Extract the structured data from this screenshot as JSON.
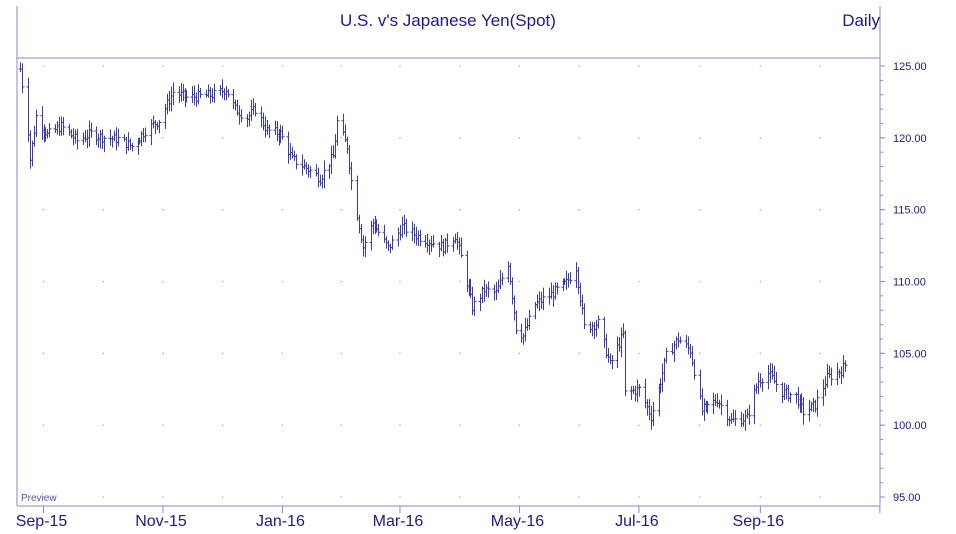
{
  "header": {
    "title": "U.S. v's Japanese Yen(Spot)",
    "frequency": "Daily"
  },
  "watermark": "Preview",
  "colors": {
    "ink": "#1a1a8c",
    "bars": "#3b3bb0",
    "grid_dots": "#b0b0b0",
    "background": "#ffffff"
  },
  "chart_data": {
    "type": "ohlc",
    "title": "U.S. v's Japanese Yen(Spot)",
    "ylim": [
      95,
      125
    ],
    "y_axis_side": "right",
    "y_tick_values": [
      95,
      100,
      105,
      110,
      115,
      120,
      125
    ],
    "y_tick_labels": [
      "95.00",
      "100.00",
      "105.00",
      "110.00",
      "115.00",
      "120.00",
      "125.00"
    ],
    "x_tick_labels": [
      "Sep-15",
      "Nov-15",
      "Jan-16",
      "Mar-16",
      "May-16",
      "Jul-16",
      "Sep-16"
    ],
    "x_tick_dates": [
      "2015-09-01",
      "2015-11-01",
      "2016-01-01",
      "2016-03-01",
      "2016-05-01",
      "2016-07-01",
      "2016-09-01"
    ],
    "x_range": [
      "2015-08-20",
      "2016-10-28"
    ],
    "grid": "dotted",
    "anchors": [
      [
        "2015-08-20",
        124.8
      ],
      [
        "2015-08-24",
        120.5
      ],
      [
        "2015-08-25",
        118.5
      ],
      [
        "2015-08-28",
        121.5
      ],
      [
        "2015-09-03",
        120.2
      ],
      [
        "2015-09-10",
        120.8
      ],
      [
        "2015-09-18",
        119.8
      ],
      [
        "2015-09-25",
        120.3
      ],
      [
        "2015-10-02",
        120.0
      ],
      [
        "2015-10-09",
        119.9
      ],
      [
        "2015-10-16",
        119.4
      ],
      [
        "2015-10-23",
        120.5
      ],
      [
        "2015-10-30",
        121.2
      ],
      [
        "2015-11-06",
        123.2
      ],
      [
        "2015-11-13",
        122.8
      ],
      [
        "2015-11-20",
        122.9
      ],
      [
        "2015-11-27",
        123.0
      ],
      [
        "2015-12-03",
        123.4
      ],
      [
        "2015-12-08",
        122.0
      ],
      [
        "2015-12-14",
        121.4
      ],
      [
        "2015-12-18",
        122.0
      ],
      [
        "2015-12-24",
        120.5
      ],
      [
        "2015-12-31",
        120.3
      ],
      [
        "2016-01-06",
        118.5
      ],
      [
        "2016-01-13",
        117.9
      ],
      [
        "2016-01-20",
        117.2
      ],
      [
        "2016-01-27",
        118.7
      ],
      [
        "2016-01-29",
        121.1
      ],
      [
        "2016-02-03",
        119.4
      ],
      [
        "2016-02-05",
        117.0
      ],
      [
        "2016-02-11",
        112.4
      ],
      [
        "2016-02-16",
        114.1
      ],
      [
        "2016-02-24",
        112.3
      ],
      [
        "2016-03-02",
        113.8
      ],
      [
        "2016-03-09",
        113.2
      ],
      [
        "2016-03-16",
        112.8
      ],
      [
        "2016-03-23",
        112.4
      ],
      [
        "2016-03-29",
        113.2
      ],
      [
        "2016-04-01",
        111.7
      ],
      [
        "2016-04-07",
        108.2
      ],
      [
        "2016-04-13",
        109.4
      ],
      [
        "2016-04-19",
        109.2
      ],
      [
        "2016-04-25",
        111.3
      ],
      [
        "2016-04-29",
        106.8
      ],
      [
        "2016-05-03",
        106.2
      ],
      [
        "2016-05-09",
        108.4
      ],
      [
        "2016-05-17",
        109.1
      ],
      [
        "2016-05-25",
        109.9
      ],
      [
        "2016-05-30",
        111.0
      ],
      [
        "2016-06-03",
        106.8
      ],
      [
        "2016-06-10",
        107.1
      ],
      [
        "2016-06-16",
        104.2
      ],
      [
        "2016-06-23",
        106.3
      ],
      [
        "2016-06-24",
        102.2
      ],
      [
        "2016-07-01",
        102.5
      ],
      [
        "2016-07-07",
        100.6
      ],
      [
        "2016-07-11",
        102.5
      ],
      [
        "2016-07-15",
        104.8
      ],
      [
        "2016-07-21",
        106.0
      ],
      [
        "2016-07-27",
        105.2
      ],
      [
        "2016-08-02",
        101.0
      ],
      [
        "2016-08-10",
        101.8
      ],
      [
        "2016-08-17",
        100.3
      ],
      [
        "2016-08-25",
        100.5
      ],
      [
        "2016-08-31",
        103.1
      ],
      [
        "2016-09-05",
        103.6
      ],
      [
        "2016-09-12",
        102.3
      ],
      [
        "2016-09-19",
        102.0
      ],
      [
        "2016-09-23",
        100.9
      ],
      [
        "2016-09-29",
        101.4
      ],
      [
        "2016-10-05",
        103.3
      ],
      [
        "2016-10-12",
        103.8
      ],
      [
        "2016-10-14",
        104.2
      ]
    ]
  }
}
